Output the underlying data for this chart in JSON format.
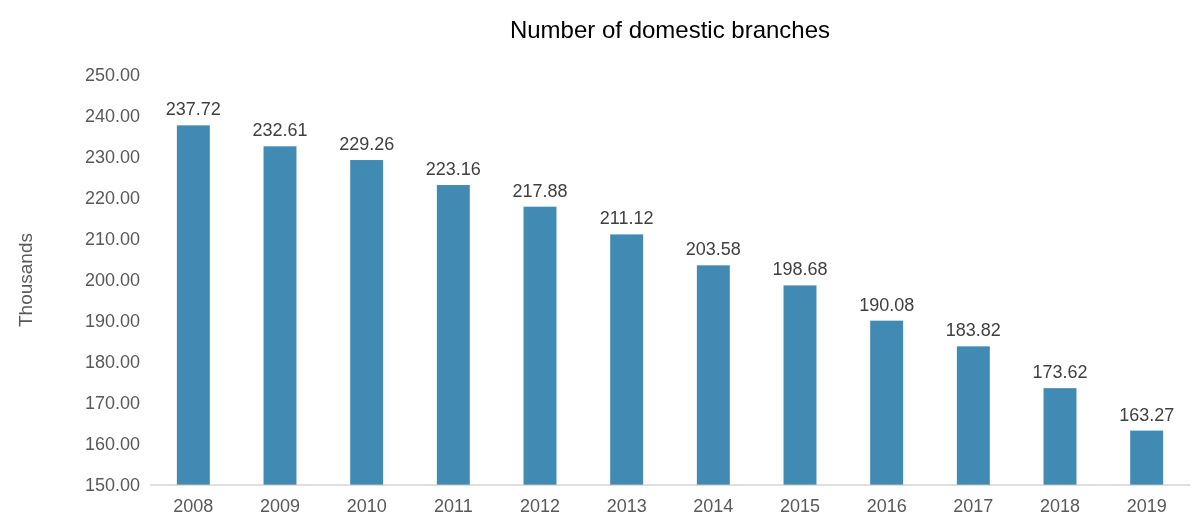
{
  "chart_data": {
    "type": "bar",
    "title": "Number of domestic branches",
    "ylabel": "Thousands",
    "categories": [
      "2008",
      "2009",
      "2010",
      "2011",
      "2012",
      "2013",
      "2014",
      "2015",
      "2016",
      "2017",
      "2018",
      "2019"
    ],
    "values": [
      237.72,
      232.61,
      229.26,
      223.16,
      217.88,
      211.12,
      203.58,
      198.68,
      190.08,
      183.82,
      173.62,
      163.27
    ],
    "color": "#418ab3",
    "ylim": [
      150,
      250
    ],
    "yticks": [
      {
        "value": 150,
        "label": "150.00"
      },
      {
        "value": 160,
        "label": "160.00"
      },
      {
        "value": 170,
        "label": "170.00"
      },
      {
        "value": 180,
        "label": "180.00"
      },
      {
        "value": 190,
        "label": "190.00"
      },
      {
        "value": 200,
        "label": "200.00"
      },
      {
        "value": 210,
        "label": "210.00"
      },
      {
        "value": 220,
        "label": "220.00"
      },
      {
        "value": 230,
        "label": "230.00"
      },
      {
        "value": 240,
        "label": "240.00"
      },
      {
        "value": 250,
        "label": "250.00"
      }
    ],
    "data_labels": true
  }
}
